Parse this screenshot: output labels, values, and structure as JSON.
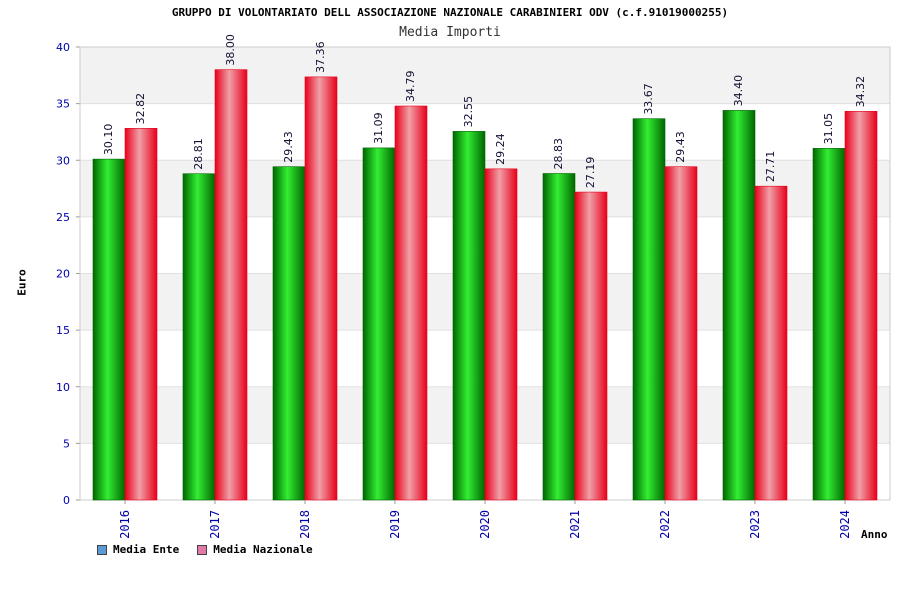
{
  "colors": {
    "ente_dark": "#006600",
    "ente_light": "#33ee33",
    "naz_dark": "#e8001a",
    "naz_light": "#f0a0a8",
    "legend_ente": "#5b9bd5",
    "legend_naz": "#e07aa8",
    "axis_text": "#0000aa",
    "band": "#f2f2f2"
  },
  "chart_data": {
    "type": "bar",
    "title": "GRUPPO DI VOLONTARIATO DELL ASSOCIAZIONE NAZIONALE CARABINIERI ODV (c.f.91019000255)",
    "subtitle": "Media Importi",
    "xlabel": "Anno",
    "ylabel": "Euro",
    "ylim": [
      0,
      40
    ],
    "yticks": [
      0,
      5,
      10,
      15,
      20,
      25,
      30,
      35,
      40
    ],
    "grid": "alternating horizontal bands",
    "legend_position": "bottom-left",
    "categories": [
      "2016",
      "2017",
      "2018",
      "2019",
      "2020",
      "2021",
      "2022",
      "2023",
      "2024"
    ],
    "series": [
      {
        "name": "Media Ente",
        "values": [
          30.1,
          28.81,
          29.43,
          31.09,
          32.55,
          28.83,
          33.67,
          34.4,
          31.05
        ],
        "labels": [
          "30.10",
          "28.81",
          "29.43",
          "31.09",
          "32.55",
          "28.83",
          "33.67",
          "34.40",
          "31.05"
        ]
      },
      {
        "name": "Media Nazionale",
        "values": [
          32.82,
          38.0,
          37.36,
          34.79,
          29.24,
          27.19,
          29.43,
          27.71,
          34.32
        ],
        "labels": [
          "32.82",
          "38.00",
          "37.36",
          "34.79",
          "29.24",
          "27.19",
          "29.43",
          "27.71",
          "34.32"
        ]
      }
    ]
  }
}
